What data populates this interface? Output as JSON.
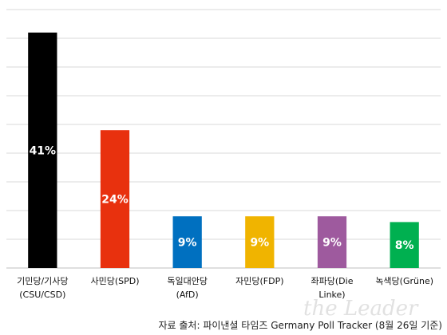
{
  "chart_data": {
    "type": "bar",
    "categories": [
      "기민당/기사당\n(CSU/CSD)",
      "사민당(SPD)",
      "독일대안당\n(AfD)",
      "자민당(FDP)",
      "좌파당(Die\nLinke)",
      "녹색당(Grüne)"
    ],
    "values": [
      41,
      24,
      9,
      9,
      9,
      8
    ],
    "value_labels": [
      "41%",
      "24%",
      "9%",
      "9%",
      "9%",
      "8%"
    ],
    "colors": [
      "#000000",
      "#e8310e",
      "#0070c0",
      "#f0b400",
      "#9e5a9e",
      "#00b050"
    ],
    "ylim": [
      0,
      45
    ],
    "grid": true
  },
  "source": "자료 출처: 파이낸셜 타임즈 Germany Poll Tracker (8월 26일 기준)",
  "watermark": "the Leader"
}
